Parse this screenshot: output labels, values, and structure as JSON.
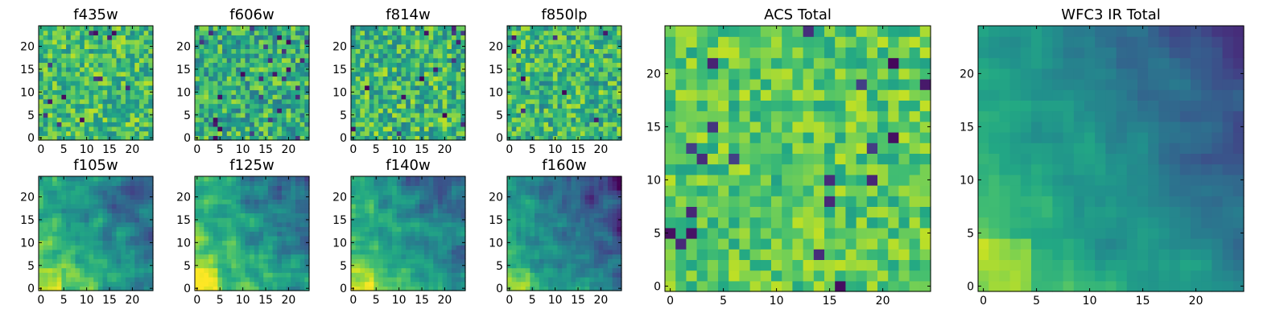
{
  "chart_data": [
    {
      "type": "heatmap",
      "title": "f435w",
      "colormap": "viridis",
      "grid_size": 25,
      "xlim": [
        -0.5,
        24.5
      ],
      "ylim": [
        -0.5,
        24.5
      ],
      "xticks": [
        0,
        5,
        10,
        15,
        20
      ],
      "yticks": [
        0,
        5,
        10,
        15,
        20
      ],
      "pattern": "uniform-noise",
      "mean_value": 0.68,
      "noise": 0.22,
      "outlier_rate": 0.02
    },
    {
      "type": "heatmap",
      "title": "f606w",
      "colormap": "viridis",
      "grid_size": 25,
      "xlim": [
        -0.5,
        24.5
      ],
      "ylim": [
        -0.5,
        24.5
      ],
      "xticks": [
        0,
        5,
        10,
        15,
        20
      ],
      "yticks": [
        0,
        5,
        10,
        15,
        20
      ],
      "pattern": "uniform-noise",
      "mean_value": 0.62,
      "noise": 0.25,
      "outlier_rate": 0.04
    },
    {
      "type": "heatmap",
      "title": "f814w",
      "colormap": "viridis",
      "grid_size": 25,
      "xlim": [
        -0.5,
        24.5
      ],
      "ylim": [
        -0.5,
        24.5
      ],
      "xticks": [
        0,
        5,
        10,
        15,
        20
      ],
      "yticks": [
        0,
        5,
        10,
        15,
        20
      ],
      "pattern": "uniform-noise",
      "mean_value": 0.66,
      "noise": 0.24,
      "outlier_rate": 0.03
    },
    {
      "type": "heatmap",
      "title": "f850lp",
      "colormap": "viridis",
      "grid_size": 25,
      "xlim": [
        -0.5,
        24.5
      ],
      "ylim": [
        -0.5,
        24.5
      ],
      "xticks": [
        0,
        5,
        10,
        15,
        20
      ],
      "yticks": [
        0,
        5,
        10,
        15,
        20
      ],
      "pattern": "uniform-noise",
      "mean_value": 0.66,
      "noise": 0.24,
      "outlier_rate": 0.02
    },
    {
      "type": "heatmap",
      "title": "f105w",
      "colormap": "viridis",
      "grid_size": 25,
      "xlim": [
        -0.5,
        24.5
      ],
      "ylim": [
        -0.5,
        24.5
      ],
      "xticks": [
        0,
        5,
        10,
        15,
        20
      ],
      "yticks": [
        0,
        5,
        10,
        15,
        20
      ],
      "pattern": "gradient-bright-bottom-left",
      "mean_value": 0.6,
      "noise": 0.16,
      "outlier_rate": 0.01
    },
    {
      "type": "heatmap",
      "title": "f125w",
      "colormap": "viridis",
      "grid_size": 25,
      "xlim": [
        -0.5,
        24.5
      ],
      "ylim": [
        -0.5,
        24.5
      ],
      "xticks": [
        0,
        5,
        10,
        15,
        20
      ],
      "yticks": [
        0,
        5,
        10,
        15,
        20
      ],
      "pattern": "gradient-bright-bottom-left",
      "mean_value": 0.62,
      "noise": 0.15,
      "outlier_rate": 0.01
    },
    {
      "type": "heatmap",
      "title": "f140w",
      "colormap": "viridis",
      "grid_size": 25,
      "xlim": [
        -0.5,
        24.5
      ],
      "ylim": [
        -0.5,
        24.5
      ],
      "xticks": [
        0,
        5,
        10,
        15,
        20
      ],
      "yticks": [
        0,
        5,
        10,
        15,
        20
      ],
      "pattern": "gradient-bright-bottom-left",
      "mean_value": 0.6,
      "noise": 0.14,
      "outlier_rate": 0.0
    },
    {
      "type": "heatmap",
      "title": "f160w",
      "colormap": "viridis",
      "grid_size": 25,
      "xlim": [
        -0.5,
        24.5
      ],
      "ylim": [
        -0.5,
        24.5
      ],
      "xticks": [
        0,
        5,
        10,
        15,
        20
      ],
      "yticks": [
        0,
        5,
        10,
        15,
        20
      ],
      "pattern": "gradient-bright-bottom-left",
      "mean_value": 0.5,
      "noise": 0.14,
      "outlier_rate": 0.0
    },
    {
      "type": "heatmap",
      "title": "ACS Total",
      "colormap": "viridis",
      "grid_size": 25,
      "xlim": [
        -0.5,
        24.5
      ],
      "ylim": [
        -0.5,
        24.5
      ],
      "xticks": [
        0,
        5,
        10,
        15,
        20
      ],
      "yticks": [
        0,
        5,
        10,
        15,
        20
      ],
      "pattern": "uniform-noise",
      "mean_value": 0.74,
      "noise": 0.17,
      "outlier_rate": 0.025
    },
    {
      "type": "heatmap",
      "title": "WFC3 IR Total",
      "colormap": "viridis",
      "grid_size": 25,
      "xlim": [
        -0.5,
        24.5
      ],
      "ylim": [
        -0.5,
        24.5
      ],
      "xticks": [
        0,
        5,
        10,
        15,
        20
      ],
      "yticks": [
        0,
        5,
        10,
        15,
        20
      ],
      "pattern": "gradient-bright-bottom-left",
      "mean_value": 0.55,
      "noise": 0.08,
      "outlier_rate": 0.0
    }
  ]
}
